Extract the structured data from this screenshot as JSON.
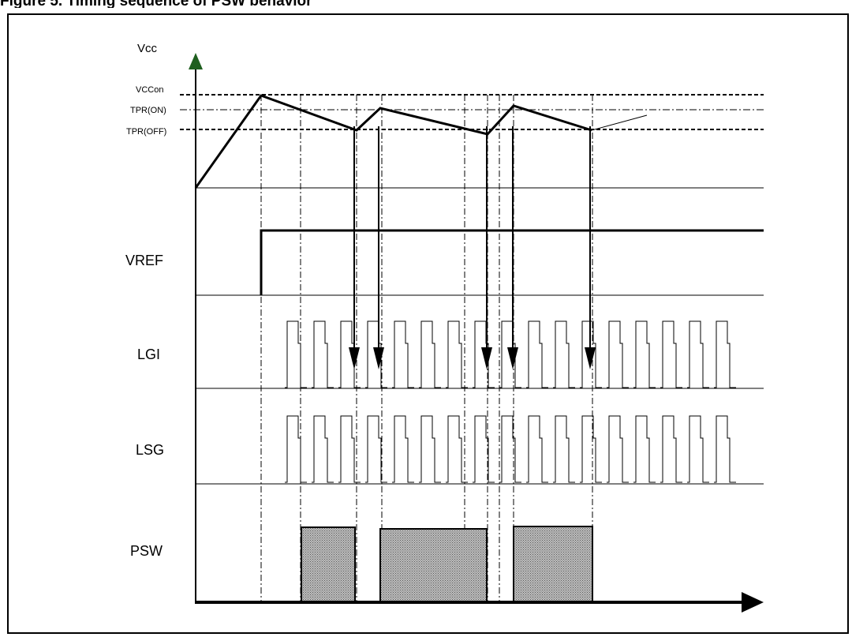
{
  "caption": "Figure 5. Timing sequence of PSW behavior",
  "labels": {
    "vcc": "Vcc",
    "vccon": "VCCon",
    "tpr_on": "TPR(ON)",
    "tpr_off": "TPR(OFF)",
    "vref": "VREF",
    "lgi": "LGI",
    "lsg": "LSG",
    "psw": "PSW"
  },
  "colors": {
    "line": "#000000",
    "arrow_head_vcc": "#1f5f1f",
    "psw_fill": "#8a8a8a"
  }
}
